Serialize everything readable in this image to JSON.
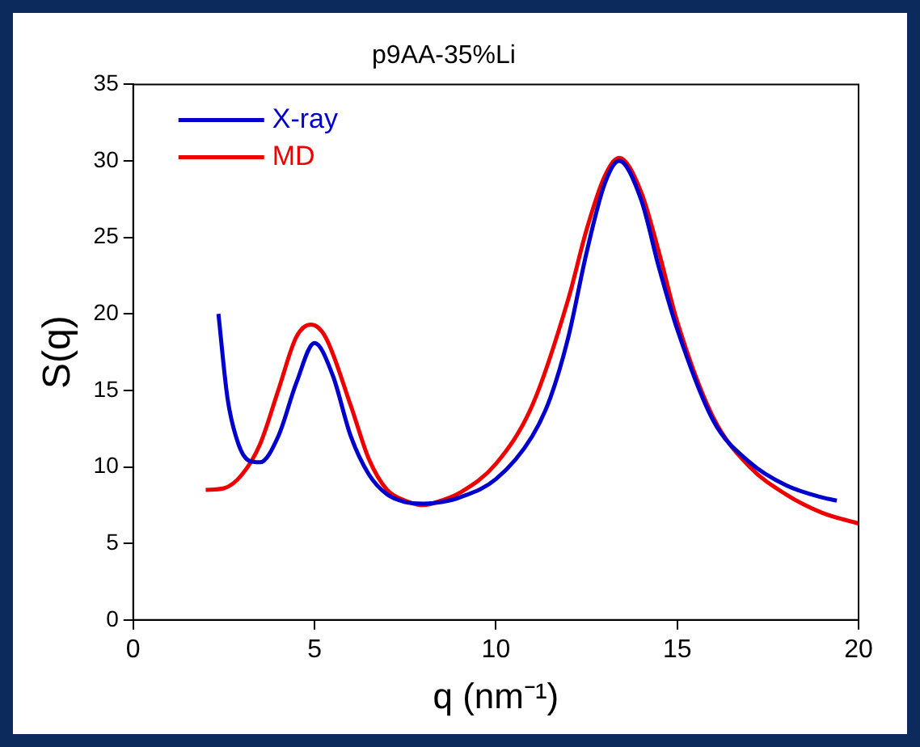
{
  "chart_data": {
    "type": "line",
    "title": "p9AA-35%Li",
    "xlabel": "q (nm⁻¹)",
    "ylabel": "S(q)",
    "xlim": [
      0,
      20
    ],
    "xticks": [
      0,
      5,
      10,
      15,
      20
    ],
    "ylim": [
      0,
      35
    ],
    "yticks": [
      0,
      5,
      10,
      15,
      20,
      25,
      30,
      35
    ],
    "grid": false,
    "legend": "top left",
    "marker": "none",
    "line_style": "solid",
    "series": [
      {
        "name": "X-ray",
        "color": "#0000cc",
        "x": [
          2.35,
          2.6,
          2.9,
          3.2,
          3.5,
          4.0,
          4.5,
          5.0,
          5.5,
          6.0,
          6.5,
          7.0,
          7.5,
          8.0,
          8.5,
          9.0,
          10,
          11,
          11.5,
          12,
          12.5,
          13,
          13.4,
          14,
          14.5,
          15,
          16,
          17,
          18,
          19,
          19.4
        ],
        "values": [
          20,
          14.5,
          11.5,
          10.4,
          10.3,
          12,
          15.5,
          18.1,
          16,
          12,
          9.5,
          8.2,
          7.7,
          7.6,
          7.7,
          8.0,
          9.2,
          12,
          14.5,
          18.5,
          24,
          28.5,
          30,
          27.5,
          23,
          19,
          13,
          10.3,
          8.8,
          8.0,
          7.8
        ]
      },
      {
        "name": "MD",
        "color": "#ee0000",
        "x": [
          2.0,
          2.5,
          3.0,
          3.5,
          4.0,
          4.5,
          4.9,
          5.3,
          6.0,
          6.5,
          7.0,
          7.5,
          8.0,
          8.5,
          9.0,
          10,
          11,
          12,
          12.5,
          13,
          13.4,
          14,
          14.5,
          15,
          16,
          17,
          18,
          19,
          20
        ],
        "values": [
          8.5,
          8.6,
          9.5,
          11.5,
          15,
          18.5,
          19.3,
          18.5,
          14,
          10.5,
          8.5,
          7.8,
          7.5,
          7.8,
          8.3,
          10.2,
          14,
          21,
          25.5,
          29,
          30.2,
          28,
          24,
          19.5,
          13.2,
          10,
          8.2,
          7,
          6.3
        ]
      }
    ]
  }
}
